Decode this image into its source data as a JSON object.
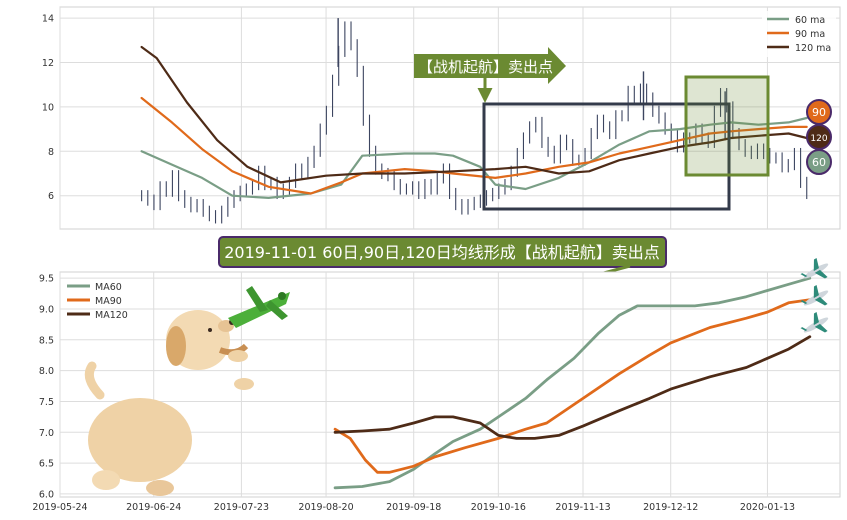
{
  "chart_data": [
    {
      "type": "line",
      "title": "",
      "xlabel": "",
      "ylabel": "",
      "ylim": [
        4.5,
        14.5
      ],
      "yticks": [
        6,
        8,
        10,
        12,
        14
      ],
      "grid": true,
      "legend_position": "top-right",
      "price_series": [
        6.0,
        5.8,
        5.6,
        6.4,
        6.2,
        6.9,
        6.0,
        5.7,
        5.5,
        5.6,
        5.3,
        5.1,
        5.0,
        5.3,
        5.7,
        6.0,
        6.2,
        6.3,
        6.5,
        7.1,
        6.5,
        6.6,
        6.1,
        6.3,
        6.6,
        7.2,
        7.0,
        7.5,
        8.0,
        9.0,
        9.8,
        11.2,
        12.5,
        13.6,
        12.8,
        11.6,
        9.4,
        8.0,
        7.2,
        7.0,
        6.9,
        6.5,
        6.3,
        6.3,
        6.4,
        6.1,
        6.5,
        6.3,
        6.8,
        7.2,
        6.1,
        5.6,
        5.4,
        5.6,
        5.7,
        5.8,
        6.0,
        6.1,
        6.3,
        6.5,
        7.1,
        7.9,
        8.6,
        9.1,
        9.3,
        8.4,
        8.0,
        7.7,
        8.5,
        8.3,
        7.6,
        7.6,
        7.9,
        8.8,
        9.4,
        9.1,
        8.8,
        9.6,
        9.6,
        10.7,
        10.4,
        10.8,
        10.4,
        9.8,
        9.5,
        9.0,
        8.7,
        8.2,
        8.6,
        8.6,
        9.0,
        8.6,
        8.4,
        9.8,
        10.6,
        10.0,
        8.8,
        8.3,
        8.0,
        7.9,
        8.1,
        7.9,
        7.7,
        7.7,
        7.3,
        7.4,
        7.9,
        6.6,
        6.1
      ],
      "price_highs": [
        {
          "x": "2019-08-24",
          "y": 14.0
        },
        {
          "x": "2019-12-03",
          "y": 11.6
        },
        {
          "x": "2019-12-30",
          "y": 10.7
        }
      ],
      "series": [
        {
          "name": "60 ma",
          "color": "#7a9e86",
          "x": [
            "2019-06-20",
            "2019-06-30",
            "2019-07-10",
            "2019-07-20",
            "2019-08-01",
            "2019-08-15",
            "2019-08-25",
            "2019-09-01",
            "2019-09-15",
            "2019-09-25",
            "2019-10-01",
            "2019-10-10",
            "2019-10-15",
            "2019-10-25",
            "2019-11-05",
            "2019-11-15",
            "2019-11-25",
            "2019-12-05",
            "2019-12-15",
            "2019-12-25",
            "2020-01-01",
            "2020-01-10",
            "2020-01-20",
            "2020-01-26"
          ],
          "values": [
            8.0,
            7.4,
            6.8,
            6.0,
            5.9,
            6.1,
            6.5,
            7.8,
            7.9,
            7.9,
            7.8,
            7.3,
            6.5,
            6.3,
            6.8,
            7.5,
            8.3,
            8.9,
            9.0,
            9.2,
            9.3,
            9.2,
            9.3,
            9.5
          ]
        },
        {
          "name": "90 ma",
          "color": "#e06a1b",
          "x": [
            "2019-06-20",
            "2019-06-30",
            "2019-07-10",
            "2019-07-20",
            "2019-08-01",
            "2019-08-15",
            "2019-08-25",
            "2019-09-01",
            "2019-09-15",
            "2019-09-25",
            "2019-10-01",
            "2019-10-15",
            "2019-10-25",
            "2019-11-05",
            "2019-11-15",
            "2019-11-25",
            "2019-12-05",
            "2019-12-15",
            "2019-12-25",
            "2020-01-01",
            "2020-01-10",
            "2020-01-20",
            "2020-01-26"
          ],
          "values": [
            10.4,
            9.3,
            8.1,
            7.1,
            6.4,
            6.1,
            6.6,
            7.0,
            7.2,
            7.1,
            7.0,
            6.8,
            7.0,
            7.3,
            7.5,
            7.9,
            8.2,
            8.5,
            8.8,
            8.9,
            9.0,
            9.1,
            9.1
          ]
        },
        {
          "name": "120 ma",
          "color": "#4e2b17",
          "x": [
            "2019-06-20",
            "2019-06-25",
            "2019-07-05",
            "2019-07-15",
            "2019-07-25",
            "2019-08-05",
            "2019-08-20",
            "2019-09-01",
            "2019-09-15",
            "2019-10-01",
            "2019-10-15",
            "2019-10-25",
            "2019-11-05",
            "2019-11-15",
            "2019-11-25",
            "2019-12-05",
            "2019-12-15",
            "2019-12-25",
            "2020-01-01",
            "2020-01-10",
            "2020-01-20",
            "2020-01-26"
          ],
          "values": [
            12.7,
            12.2,
            10.2,
            8.5,
            7.3,
            6.6,
            6.9,
            7.0,
            7.0,
            7.1,
            7.2,
            7.3,
            7.0,
            7.1,
            7.6,
            7.9,
            8.2,
            8.4,
            8.6,
            8.7,
            8.8,
            8.6
          ]
        }
      ],
      "annotations": {
        "arrow_label": "【战机起航】卖出点",
        "badges": [
          "90",
          "120",
          "60"
        ]
      }
    },
    {
      "type": "line",
      "title": "2019-11-01 60日,90日,120日均线形成【战机起航】卖出点",
      "xlabel": "",
      "ylabel": "",
      "xlim": [
        "2019-05-24",
        "2020-02-06"
      ],
      "ylim": [
        5.95,
        9.6
      ],
      "yticks": [
        6.0,
        6.5,
        7.0,
        7.5,
        8.0,
        8.5,
        9.0,
        9.5
      ],
      "xticks": [
        "2019-05-24",
        "2019-06-24",
        "2019-07-23",
        "2019-08-20",
        "2019-09-18",
        "2019-10-16",
        "2019-11-13",
        "2019-12-12",
        "2020-01-13"
      ],
      "grid": true,
      "legend_position": "top-left",
      "series": [
        {
          "name": "MA60",
          "color": "#7a9e86",
          "x": [
            "2019-08-23",
            "2019-09-01",
            "2019-09-10",
            "2019-09-18",
            "2019-09-25",
            "2019-10-01",
            "2019-10-10",
            "2019-10-16",
            "2019-10-25",
            "2019-11-01",
            "2019-11-10",
            "2019-11-18",
            "2019-11-25",
            "2019-12-01",
            "2019-12-07",
            "2019-12-12",
            "2019-12-20",
            "2019-12-28",
            "2020-01-06",
            "2020-01-13",
            "2020-01-20",
            "2020-01-27"
          ],
          "values": [
            6.1,
            6.12,
            6.2,
            6.4,
            6.65,
            6.85,
            7.05,
            7.25,
            7.55,
            7.85,
            8.2,
            8.6,
            8.9,
            9.05,
            9.05,
            9.05,
            9.05,
            9.1,
            9.2,
            9.3,
            9.4,
            9.5
          ]
        },
        {
          "name": "MA90",
          "color": "#e06a1b",
          "x": [
            "2019-08-23",
            "2019-08-28",
            "2019-09-02",
            "2019-09-06",
            "2019-09-10",
            "2019-09-18",
            "2019-09-25",
            "2019-10-05",
            "2019-10-16",
            "2019-10-25",
            "2019-11-01",
            "2019-11-13",
            "2019-11-25",
            "2019-12-05",
            "2019-12-12",
            "2019-12-25",
            "2020-01-06",
            "2020-01-13",
            "2020-01-20",
            "2020-01-27"
          ],
          "values": [
            7.05,
            6.9,
            6.55,
            6.35,
            6.35,
            6.45,
            6.6,
            6.75,
            6.9,
            7.05,
            7.15,
            7.55,
            7.95,
            8.25,
            8.45,
            8.7,
            8.85,
            8.95,
            9.1,
            9.15
          ]
        },
        {
          "name": "MA120",
          "color": "#4e2b17",
          "x": [
            "2019-08-23",
            "2019-09-01",
            "2019-09-10",
            "2019-09-18",
            "2019-09-25",
            "2019-10-01",
            "2019-10-10",
            "2019-10-16",
            "2019-10-22",
            "2019-10-28",
            "2019-11-05",
            "2019-11-13",
            "2019-11-25",
            "2019-12-05",
            "2019-12-12",
            "2019-12-25",
            "2020-01-06",
            "2020-01-13",
            "2020-01-20",
            "2020-01-27"
          ],
          "values": [
            7.0,
            7.02,
            7.05,
            7.15,
            7.25,
            7.25,
            7.15,
            6.95,
            6.9,
            6.9,
            6.95,
            7.1,
            7.35,
            7.55,
            7.7,
            7.9,
            8.05,
            8.2,
            8.35,
            8.55
          ]
        }
      ]
    }
  ]
}
